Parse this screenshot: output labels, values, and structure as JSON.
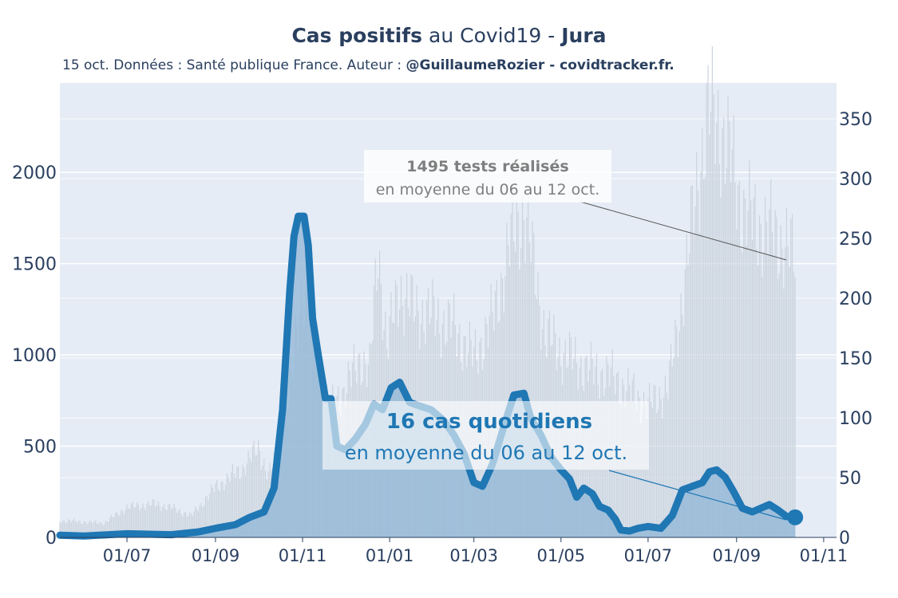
{
  "header": {
    "title_bold1": "Cas positifs",
    "title_mid": " au Covid19 - ",
    "title_bold2": "Jura",
    "subtitle_prefix": "15 oct. Données : Santé publique France. Auteur : ",
    "subtitle_author": "@GuillaumeRozier - covidtracker.fr."
  },
  "colors": {
    "plot_bg": "#e5ecf6",
    "cases_line": "#1f77b4",
    "cases_fill": "#8fb6d6",
    "tests_bars": "#c8d0da",
    "text": "#2a3f5f",
    "annotation_grey": "#7f7f7f"
  },
  "annotations": {
    "tests_bold": "1495 tests réalisés",
    "tests_text": "en moyenne du 06 au 12 oct.",
    "cases_bold": "16 cas quotidiens",
    "cases_text": "en moyenne du 06 au 12 oct."
  },
  "chart_data": {
    "type": "line",
    "title": "Cas positifs au Covid19 - Jura",
    "x_ticks": [
      "01/07",
      "01/09",
      "01/11",
      "01/01",
      "01/03",
      "01/05",
      "01/07",
      "01/09",
      "01/11"
    ],
    "x_tick_dates": [
      "2020-07-01",
      "2020-09-01",
      "2020-11-01",
      "2021-01-01",
      "2021-03-01",
      "2021-05-01",
      "2021-07-01",
      "2021-09-01",
      "2021-11-01"
    ],
    "x_range": [
      "2020-05-15",
      "2021-11-10"
    ],
    "y_left_ticks": [
      0,
      500,
      1000,
      1500,
      2000
    ],
    "y_left_range": [
      0,
      2490
    ],
    "y_right_ticks": [
      0,
      50,
      100,
      150,
      200,
      250,
      300,
      350
    ],
    "y_right_range": [
      0,
      380
    ],
    "grid": true,
    "series": [
      {
        "axis": "left",
        "style": "area+line",
        "points": [
          [
            "2020-05-15",
            12
          ],
          [
            "2020-06-01",
            8
          ],
          [
            "2020-07-01",
            20
          ],
          [
            "2020-08-01",
            15
          ],
          [
            "2020-08-20",
            30
          ],
          [
            "2020-09-01",
            50
          ],
          [
            "2020-09-15",
            70
          ],
          [
            "2020-09-25",
            110
          ],
          [
            "2020-10-05",
            140
          ],
          [
            "2020-10-12",
            270
          ],
          [
            "2020-10-18",
            700
          ],
          [
            "2020-10-23",
            1350
          ],
          [
            "2020-10-26",
            1650
          ],
          [
            "2020-10-29",
            1760
          ],
          [
            "2020-11-02",
            1760
          ],
          [
            "2020-11-05",
            1600
          ],
          [
            "2020-11-08",
            1200
          ],
          [
            "2020-11-12",
            1000
          ],
          [
            "2020-11-17",
            760
          ],
          [
            "2020-11-21",
            760
          ],
          [
            "2020-11-25",
            500
          ],
          [
            "2020-12-01",
            480
          ],
          [
            "2020-12-08",
            540
          ],
          [
            "2020-12-15",
            620
          ],
          [
            "2020-12-21",
            730
          ],
          [
            "2020-12-27",
            700
          ],
          [
            "2021-01-02",
            820
          ],
          [
            "2021-01-08",
            850
          ],
          [
            "2021-01-15",
            740
          ],
          [
            "2021-01-22",
            720
          ],
          [
            "2021-01-30",
            700
          ],
          [
            "2021-02-08",
            640
          ],
          [
            "2021-02-15",
            560
          ],
          [
            "2021-02-22",
            460
          ],
          [
            "2021-03-01",
            300
          ],
          [
            "2021-03-07",
            280
          ],
          [
            "2021-03-14",
            400
          ],
          [
            "2021-03-22",
            610
          ],
          [
            "2021-03-29",
            780
          ],
          [
            "2021-04-05",
            790
          ],
          [
            "2021-04-10",
            650
          ],
          [
            "2021-04-17",
            560
          ],
          [
            "2021-04-24",
            440
          ],
          [
            "2021-05-01",
            370
          ],
          [
            "2021-05-07",
            320
          ],
          [
            "2021-05-12",
            220
          ],
          [
            "2021-05-17",
            270
          ],
          [
            "2021-05-23",
            240
          ],
          [
            "2021-05-28",
            170
          ],
          [
            "2021-06-03",
            150
          ],
          [
            "2021-06-08",
            100
          ],
          [
            "2021-06-12",
            40
          ],
          [
            "2021-06-18",
            35
          ],
          [
            "2021-06-24",
            50
          ],
          [
            "2021-07-01",
            60
          ],
          [
            "2021-07-10",
            50
          ],
          [
            "2021-07-18",
            120
          ],
          [
            "2021-07-25",
            260
          ],
          [
            "2021-08-01",
            280
          ],
          [
            "2021-08-08",
            300
          ],
          [
            "2021-08-13",
            360
          ],
          [
            "2021-08-18",
            370
          ],
          [
            "2021-08-24",
            330
          ],
          [
            "2021-08-30",
            250
          ],
          [
            "2021-09-05",
            160
          ],
          [
            "2021-09-12",
            140
          ],
          [
            "2021-09-18",
            160
          ],
          [
            "2021-09-24",
            180
          ],
          [
            "2021-09-30",
            150
          ],
          [
            "2021-10-06",
            115
          ],
          [
            "2021-10-12",
            110
          ]
        ]
      },
      {
        "axis": "right",
        "style": "bars",
        "points": [
          [
            "2020-05-15",
            14
          ],
          [
            "2020-06-15",
            12
          ],
          [
            "2020-07-01",
            25
          ],
          [
            "2020-07-20",
            28
          ],
          [
            "2020-08-01",
            25
          ],
          [
            "2020-08-15",
            18
          ],
          [
            "2020-09-01",
            42
          ],
          [
            "2020-09-20",
            58
          ],
          [
            "2020-10-01",
            75
          ],
          [
            "2020-10-08",
            52
          ],
          [
            "2020-10-15",
            70
          ],
          [
            "2020-10-25",
            140
          ],
          [
            "2020-11-01",
            215
          ],
          [
            "2020-11-10",
            165
          ],
          [
            "2020-11-20",
            105
          ],
          [
            "2020-12-01",
            125
          ],
          [
            "2020-12-12",
            150
          ],
          [
            "2020-12-18",
            140
          ],
          [
            "2020-12-24",
            240
          ],
          [
            "2020-12-30",
            160
          ],
          [
            "2021-01-08",
            208
          ],
          [
            "2021-01-18",
            190
          ],
          [
            "2021-02-01",
            185
          ],
          [
            "2021-02-15",
            175
          ],
          [
            "2021-03-01",
            150
          ],
          [
            "2021-03-15",
            185
          ],
          [
            "2021-03-25",
            240
          ],
          [
            "2021-04-05",
            275
          ],
          [
            "2021-04-20",
            170
          ],
          [
            "2021-05-01",
            155
          ],
          [
            "2021-05-20",
            140
          ],
          [
            "2021-06-05",
            135
          ],
          [
            "2021-06-20",
            120
          ],
          [
            "2021-07-01",
            110
          ],
          [
            "2021-07-15",
            125
          ],
          [
            "2021-07-25",
            200
          ],
          [
            "2021-08-05",
            300
          ],
          [
            "2021-08-12",
            355
          ],
          [
            "2021-08-20",
            345
          ],
          [
            "2021-08-28",
            315
          ],
          [
            "2021-09-05",
            275
          ],
          [
            "2021-09-15",
            262
          ],
          [
            "2021-09-25",
            255
          ],
          [
            "2021-10-05",
            245
          ],
          [
            "2021-10-12",
            232
          ]
        ]
      }
    ]
  }
}
